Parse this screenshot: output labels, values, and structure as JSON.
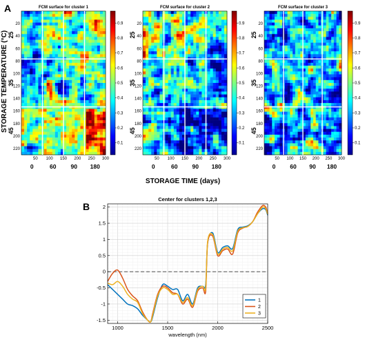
{
  "panel_a_label": "A",
  "panel_b_label": "B",
  "y_axis_label": "STORAGE TEMPERATURE (°C)",
  "x_axis_label": "STORAGE TIME (days)",
  "chart_data": [
    {
      "type": "heatmap",
      "title": "FCM surface for cluster 1",
      "x_ticks": [
        "50",
        "100",
        "150",
        "200",
        "250",
        "300"
      ],
      "y_ticks": [
        "20",
        "40",
        "60",
        "80",
        "100",
        "120",
        "140",
        "160",
        "180",
        "200",
        "220"
      ],
      "colorbar_ticks": [
        "0.1",
        "0.2",
        "0.3",
        "0.4",
        "0.5",
        "0.6",
        "0.7",
        "0.8",
        "0.9"
      ],
      "row_labels": [
        "25",
        "35",
        "45"
      ],
      "column_labels": [
        "0",
        "60",
        "90",
        "180"
      ],
      "mean_membership": [
        [
          0.35,
          0.4,
          0.45,
          0.55
        ],
        [
          0.3,
          0.4,
          0.5,
          0.45
        ],
        [
          0.45,
          0.55,
          0.55,
          0.8
        ]
      ]
    },
    {
      "type": "heatmap",
      "title": "FCM surface for cluster 2",
      "x_ticks": [
        "50",
        "100",
        "150",
        "200",
        "250",
        "300"
      ],
      "y_ticks": [
        "20",
        "40",
        "60",
        "80",
        "100",
        "120",
        "140",
        "160",
        "180",
        "200",
        "220"
      ],
      "colorbar_ticks": [
        "0.1",
        "0.2",
        "0.3",
        "0.4",
        "0.5",
        "0.6",
        "0.7",
        "0.8",
        "0.9"
      ],
      "row_labels": [
        "25",
        "35",
        "45"
      ],
      "column_labels": [
        "0",
        "60",
        "90",
        "180"
      ],
      "mean_membership": [
        [
          0.55,
          0.45,
          0.4,
          0.35
        ],
        [
          0.4,
          0.4,
          0.35,
          0.3
        ],
        [
          0.35,
          0.25,
          0.15,
          0.1
        ]
      ]
    },
    {
      "type": "heatmap",
      "title": "FCM surface for cluster 3",
      "x_ticks": [
        "50",
        "100",
        "150",
        "200",
        "250",
        "300"
      ],
      "y_ticks": [
        "20",
        "40",
        "60",
        "80",
        "100",
        "120",
        "140",
        "160",
        "180",
        "200",
        "220"
      ],
      "colorbar_ticks": [
        "0.1",
        "0.2",
        "0.3",
        "0.4",
        "0.5",
        "0.6",
        "0.7",
        "0.8",
        "0.9"
      ],
      "row_labels": [
        "25",
        "35",
        "45"
      ],
      "column_labels": [
        "0",
        "60",
        "90",
        "180"
      ],
      "mean_membership": [
        [
          0.3,
          0.35,
          0.3,
          0.35
        ],
        [
          0.35,
          0.3,
          0.3,
          0.3
        ],
        [
          0.35,
          0.3,
          0.35,
          0.25
        ]
      ]
    },
    {
      "type": "line",
      "title": "Center for clusters 1,2,3",
      "xlabel": "wavelength (nm)",
      "ylabel": "",
      "xlim": [
        900,
        2500
      ],
      "ylim": [
        -1.6,
        2.1
      ],
      "x_ticks": [
        "1000",
        "1500",
        "2000",
        "2500"
      ],
      "y_ticks": [
        "-1.5",
        "-1",
        "-0.5",
        "0",
        "0.5",
        "1",
        "1.5",
        "2"
      ],
      "grid": true,
      "legend_position": "bottom-right",
      "reference_line": 0,
      "x": [
        900,
        950,
        1000,
        1050,
        1100,
        1150,
        1200,
        1250,
        1300,
        1330,
        1350,
        1400,
        1450,
        1500,
        1550,
        1600,
        1650,
        1700,
        1750,
        1800,
        1850,
        1880,
        1900,
        1950,
        2000,
        2050,
        2100,
        2150,
        2200,
        2250,
        2300,
        2350,
        2400,
        2450,
        2480,
        2500
      ],
      "series": [
        {
          "name": "1",
          "color": "#0072BD",
          "values": [
            -0.4,
            -0.55,
            -0.7,
            -0.85,
            -1.0,
            -1.05,
            -1.15,
            -1.35,
            -1.5,
            -1.55,
            -1.4,
            -0.8,
            -0.4,
            -0.45,
            -0.55,
            -0.55,
            -0.9,
            -0.7,
            -1.0,
            -0.5,
            -0.45,
            -0.4,
            0.9,
            1.2,
            0.6,
            0.75,
            0.8,
            0.72,
            1.3,
            1.38,
            1.42,
            1.55,
            1.8,
            1.95,
            1.92,
            1.75
          ]
        },
        {
          "name": "2",
          "color": "#D95319",
          "values": [
            -0.3,
            -0.05,
            0.05,
            -0.2,
            -0.55,
            -0.75,
            -0.9,
            -1.25,
            -1.5,
            -1.55,
            -1.3,
            -0.7,
            -0.45,
            -0.5,
            -0.65,
            -0.7,
            -1.0,
            -0.85,
            -1.1,
            -0.6,
            -0.5,
            -0.6,
            0.9,
            1.1,
            0.5,
            0.65,
            0.7,
            0.55,
            1.2,
            1.35,
            1.4,
            1.55,
            1.85,
            2.05,
            2.0,
            1.8
          ]
        },
        {
          "name": "3",
          "color": "#EDB120",
          "values": [
            -0.35,
            -0.4,
            -0.3,
            -0.45,
            -0.7,
            -0.85,
            -0.95,
            -1.3,
            -1.5,
            -1.55,
            -1.35,
            -0.75,
            -0.5,
            -0.55,
            -0.7,
            -0.7,
            -0.95,
            -0.8,
            -1.05,
            -0.55,
            -0.45,
            -0.5,
            0.95,
            1.15,
            0.55,
            0.7,
            0.75,
            0.65,
            1.25,
            1.36,
            1.4,
            1.55,
            1.8,
            2.0,
            1.95,
            1.78
          ]
        }
      ]
    }
  ]
}
